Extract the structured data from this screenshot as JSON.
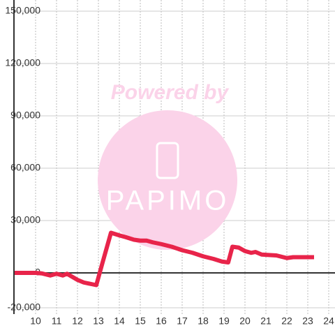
{
  "chart_data": {
    "type": "line",
    "watermark": {
      "text": "Powered by",
      "logo": "PAPIMO"
    },
    "x": [
      9,
      10,
      10.3,
      10.7,
      11,
      11.3,
      11.5,
      12,
      12.3,
      12.7,
      12.9,
      13.2,
      13.6,
      14,
      14.3,
      14.7,
      15,
      15.3,
      15.6,
      16,
      16.5,
      17,
      17.5,
      18,
      18.5,
      18.9,
      19.2,
      19.4,
      19.7,
      20,
      20.3,
      20.5,
      20.8,
      21.5,
      22,
      22.3,
      23.3
    ],
    "series": [
      {
        "color": "#e8244a",
        "values": [
          0,
          0,
          -300,
          -1500,
          -500,
          -1500,
          -500,
          -4000,
          -5500,
          -6500,
          -7000,
          6000,
          23000,
          21500,
          20500,
          19000,
          18500,
          18500,
          17500,
          16500,
          15000,
          13000,
          11500,
          9500,
          8000,
          6500,
          6000,
          15000,
          14500,
          12500,
          11500,
          12000,
          10500,
          10000,
          8500,
          9000,
          9000
        ]
      }
    ],
    "xlim": [
      9,
      24.3
    ],
    "xticks": [
      10,
      11,
      12,
      13,
      14,
      15,
      16,
      17,
      18,
      19,
      20,
      21,
      22,
      23,
      24
    ],
    "ylim": [
      -20000,
      150000
    ],
    "yticks": [
      {
        "value": -20000,
        "label": "-20,000"
      },
      0,
      {
        "value": 30000,
        "label": "30,000"
      },
      {
        "value": 60000,
        "label": "60,000"
      },
      {
        "value": 90000,
        "label": "90,000"
      },
      {
        "value": 120000,
        "label": "120,000"
      },
      {
        "value": 150000,
        "label": "150,000"
      }
    ],
    "grid": true
  }
}
